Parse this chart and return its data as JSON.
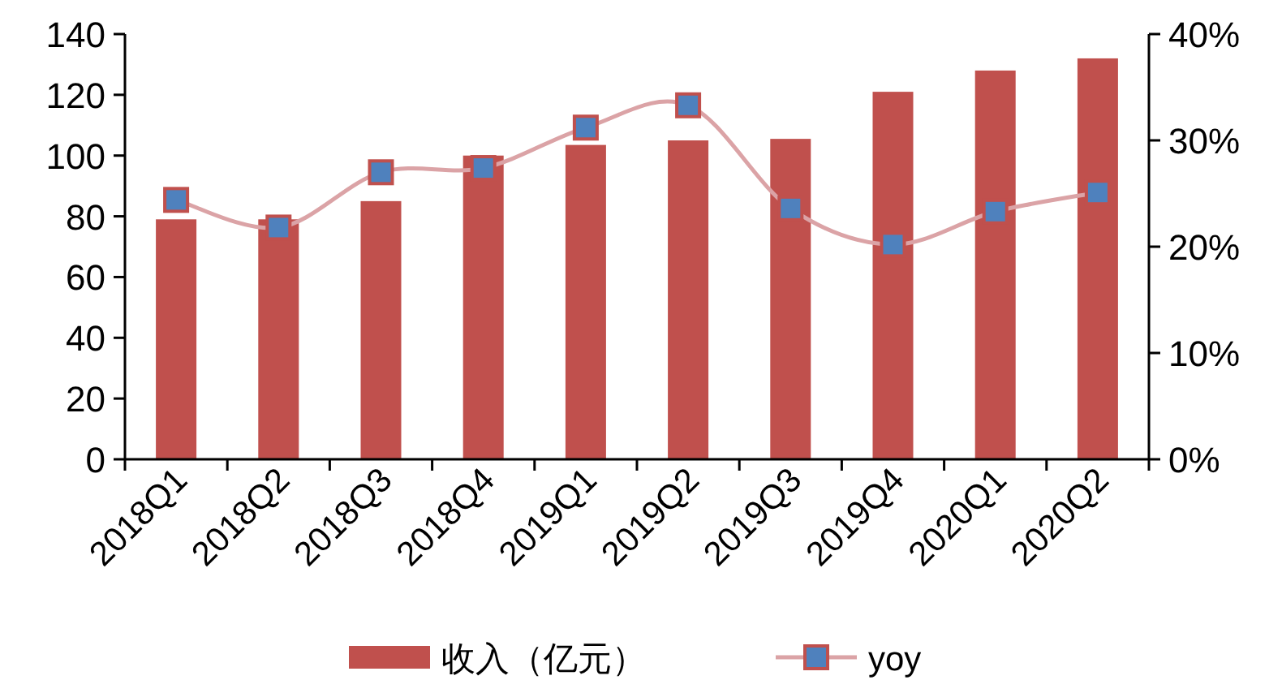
{
  "chart_data": {
    "type": "bar",
    "categories": [
      "2018Q1",
      "2018Q2",
      "2018Q3",
      "2018Q4",
      "2019Q1",
      "2019Q2",
      "2019Q3",
      "2019Q4",
      "2020Q1",
      "2020Q2"
    ],
    "series": [
      {
        "name": "收入（亿元）",
        "color": "#c0504d",
        "values": [
          79,
          79,
          85,
          100,
          103.5,
          105,
          105.5,
          121,
          128,
          132
        ]
      },
      {
        "name": "yoy",
        "type": "line",
        "axis": "y2",
        "color": "#dba3a6",
        "marker": "square",
        "values": [
          24.4,
          21.8,
          27.0,
          27.4,
          31.2,
          33.3,
          23.6,
          20.2,
          23.3,
          25.1
        ]
      }
    ],
    "ylim": [
      0,
      140
    ],
    "yticks": [
      0,
      20,
      40,
      60,
      80,
      100,
      120,
      140
    ],
    "y2lim": [
      0,
      40
    ],
    "y2ticks": [
      {
        "value": 0,
        "label": "0%"
      },
      {
        "value": 10,
        "label": "10%"
      },
      {
        "value": 20,
        "label": "20%"
      },
      {
        "value": 30,
        "label": "30%"
      },
      {
        "value": 40,
        "label": "40%"
      }
    ],
    "grid": false,
    "legend": "bottom"
  }
}
